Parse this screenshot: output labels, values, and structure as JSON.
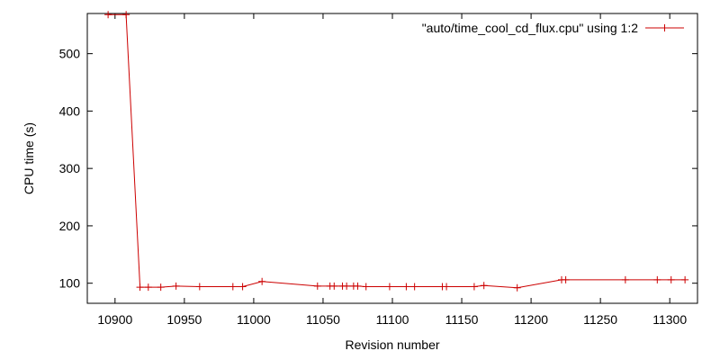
{
  "chart_data": {
    "type": "line",
    "title": "",
    "xlabel": "Revision number",
    "ylabel": "CPU time (s)",
    "xlim": [
      10880,
      11320
    ],
    "ylim": [
      65,
      570
    ],
    "xticks": [
      10900,
      10950,
      11000,
      11050,
      11100,
      11150,
      11200,
      11250,
      11300
    ],
    "yticks": [
      100,
      200,
      300,
      400,
      500
    ],
    "grid": false,
    "legend_position": "top-right",
    "series": [
      {
        "name": "\"auto/time_cool_cd_flux.cpu\" using 1:2",
        "color": "#cc0000",
        "marker": "plus",
        "x": [
          10895,
          10908,
          10918,
          10924,
          10933,
          10944,
          10961,
          10985,
          10992,
          11006,
          11046,
          11055,
          11058,
          11064,
          11067,
          11072,
          11075,
          11081,
          11098,
          11110,
          11116,
          11136,
          11139,
          11159,
          11166,
          11190,
          11222,
          11225,
          11268,
          11291,
          11301,
          11311
        ],
        "y": [
          568,
          568,
          93,
          93,
          93,
          95,
          94,
          94,
          94,
          103,
          95,
          95,
          95,
          95,
          95,
          95,
          95,
          94,
          94,
          94,
          94,
          94,
          94,
          94,
          96,
          92,
          106,
          106,
          106,
          106,
          106,
          106
        ]
      }
    ]
  }
}
